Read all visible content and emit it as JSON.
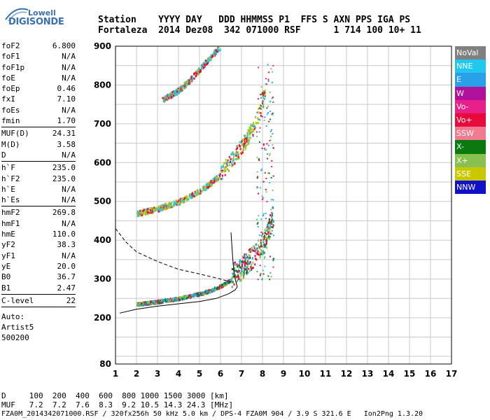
{
  "logo": {
    "line1": "Lowell",
    "line2": "DIGISONDE"
  },
  "header": {
    "line1": "Station    YYYY DAY   DDD HHMMSS P1  FFS S AXN PPS IGA PS",
    "line2": "Fortaleza  2014 Dez08  342 071000 RSF      1 714 100 10+ 11"
  },
  "params": [
    [
      {
        "k": "foF2",
        "v": "6.800"
      },
      {
        "k": "foF1",
        "v": "N/A"
      },
      {
        "k": "foF1p",
        "v": "N/A"
      },
      {
        "k": "foE",
        "v": "N/A"
      },
      {
        "k": "foEp",
        "v": "0.46"
      },
      {
        "k": "fxI",
        "v": "7.10"
      },
      {
        "k": "foEs",
        "v": "N/A"
      },
      {
        "k": "fmin",
        "v": "1.70"
      }
    ],
    [
      {
        "k": "MUF(D)",
        "v": "24.31"
      },
      {
        "k": "M(D)",
        "v": "3.58"
      },
      {
        "k": "D",
        "v": "N/A"
      }
    ],
    [
      {
        "k": "h`F",
        "v": "235.0"
      },
      {
        "k": "h`F2",
        "v": "235.0"
      },
      {
        "k": "h`E",
        "v": "N/A"
      },
      {
        "k": "h`Es",
        "v": "N/A"
      }
    ],
    [
      {
        "k": "hmF2",
        "v": "269.8"
      },
      {
        "k": "hmF1",
        "v": "N/A"
      },
      {
        "k": "hmE",
        "v": "110.0"
      },
      {
        "k": "yF2",
        "v": "38.3"
      },
      {
        "k": "yF1",
        "v": "N/A"
      },
      {
        "k": "yE",
        "v": "20.0"
      },
      {
        "k": "B0",
        "v": "36.7"
      },
      {
        "k": "B1",
        "v": "2.47"
      }
    ],
    [
      {
        "k": "C-level",
        "v": "22"
      }
    ]
  ],
  "auto": [
    "Auto:",
    "Artist5",
    "500200"
  ],
  "legend": [
    {
      "label": "NoVal",
      "color": "#808080"
    },
    {
      "label": "NNE",
      "color": "#20c8f0"
    },
    {
      "label": "E",
      "color": "#2aa0e8"
    },
    {
      "label": "W",
      "color": "#b0109a"
    },
    {
      "label": "Vo-",
      "color": "#e8208a"
    },
    {
      "label": "Vo+",
      "color": "#e80a3a"
    },
    {
      "label": "SSW",
      "color": "#f07a90"
    },
    {
      "label": "X-",
      "color": "#0a7a10"
    },
    {
      "label": "X+",
      "color": "#8ac050"
    },
    {
      "label": "SSE",
      "color": "#c8c800"
    },
    {
      "label": "NNW",
      "color": "#1010c8"
    }
  ],
  "bottom": {
    "line1": "D     100  200  400  600  800 1000 1500 3000 [km]",
    "line2": "MUF   7.2  7.2  7.6  8.3  9.2 10.5 14.3 24.3 [MHz]",
    "line3": "FZA0M_2014342071000.RSF / 320fx256h 50 kHz 5.0 km / DPS-4 FZA0M 904 / 3.9 S 321.6 E   Ion2Png 1.3.20"
  },
  "chart_data": {
    "type": "scatter",
    "xlim": [
      1,
      17
    ],
    "ylim": [
      80,
      900
    ],
    "x_ticks": [
      1,
      2,
      3,
      4,
      5,
      6,
      7,
      8,
      9,
      10,
      11,
      12,
      13,
      14,
      15,
      16,
      17
    ],
    "y_ticks": [
      80,
      200,
      300,
      400,
      500,
      600,
      700,
      800,
      900
    ],
    "grid": true,
    "traces": [
      {
        "name": "F-trace 1st hop",
        "color_mix": [
          "#e80a3a",
          "#8ac050",
          "#2aa0e8",
          "#0a7a10"
        ],
        "points": [
          [
            2.0,
            235
          ],
          [
            3.0,
            242
          ],
          [
            4.0,
            250
          ],
          [
            5.0,
            262
          ],
          [
            5.5,
            270
          ],
          [
            6.0,
            282
          ],
          [
            6.5,
            298
          ],
          [
            7.0,
            318
          ],
          [
            7.4,
            340
          ],
          [
            7.8,
            365
          ],
          [
            8.1,
            390
          ],
          [
            8.3,
            420
          ],
          [
            8.5,
            460
          ]
        ]
      },
      {
        "name": "F-trace 2nd hop",
        "color_mix": [
          "#e80a3a",
          "#8ac050",
          "#20c8f0",
          "#c8c800"
        ],
        "points": [
          [
            2.0,
            468
          ],
          [
            3.0,
            480
          ],
          [
            4.0,
            498
          ],
          [
            5.0,
            525
          ],
          [
            5.5,
            545
          ],
          [
            6.0,
            570
          ],
          [
            6.5,
            600
          ],
          [
            7.0,
            635
          ],
          [
            7.5,
            680
          ],
          [
            7.9,
            730
          ],
          [
            8.1,
            780
          ]
        ]
      },
      {
        "name": "F-trace 3rd hop",
        "color_mix": [
          "#e80a3a",
          "#8ac050",
          "#20c8f0"
        ],
        "points": [
          [
            3.2,
            760
          ],
          [
            4.0,
            785
          ],
          [
            4.5,
            810
          ],
          [
            5.0,
            840
          ],
          [
            5.5,
            870
          ],
          [
            6.0,
            900
          ]
        ]
      }
    ],
    "profile_solid": [
      [
        1.2,
        212
      ],
      [
        2.0,
        222
      ],
      [
        3.0,
        230
      ],
      [
        4.0,
        236
      ],
      [
        5.0,
        242
      ],
      [
        5.8,
        250
      ],
      [
        6.4,
        262
      ],
      [
        6.7,
        272
      ],
      [
        6.8,
        280
      ],
      [
        6.7,
        300
      ],
      [
        6.6,
        340
      ],
      [
        6.5,
        420
      ]
    ],
    "profile_dashed": [
      [
        1.0,
        430
      ],
      [
        1.5,
        395
      ],
      [
        2.0,
        370
      ],
      [
        3.0,
        345
      ],
      [
        4.0,
        325
      ],
      [
        5.0,
        313
      ],
      [
        6.0,
        300
      ],
      [
        6.5,
        292
      ]
    ]
  }
}
